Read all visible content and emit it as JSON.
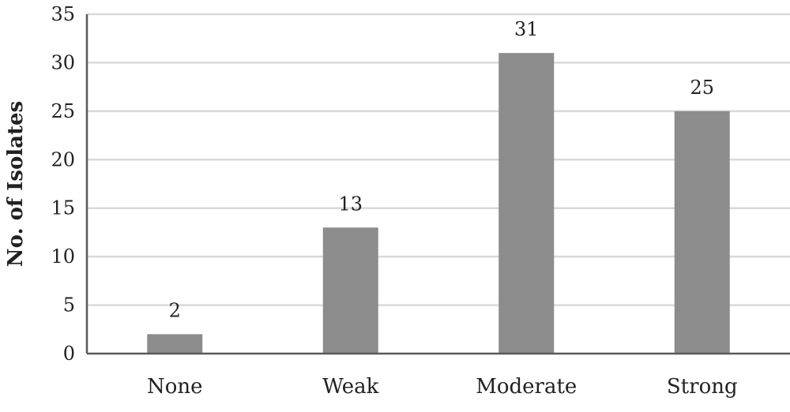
{
  "chart_data": {
    "type": "bar",
    "categories": [
      "None",
      "Weak",
      "Moderate",
      "Strong"
    ],
    "values": [
      2,
      13,
      31,
      25
    ],
    "data_labels": [
      "2",
      "13",
      "31",
      "25"
    ],
    "title": "",
    "xlabel": "",
    "ylabel": "No. of Isolates",
    "ylim": [
      0,
      35
    ],
    "yticks": [
      0,
      5,
      10,
      15,
      20,
      25,
      30,
      35
    ],
    "grid": true,
    "legend": "none",
    "bar_color": "#8c8c8c",
    "grid_color": "#d9d9d9",
    "axis_color": "#595959"
  }
}
